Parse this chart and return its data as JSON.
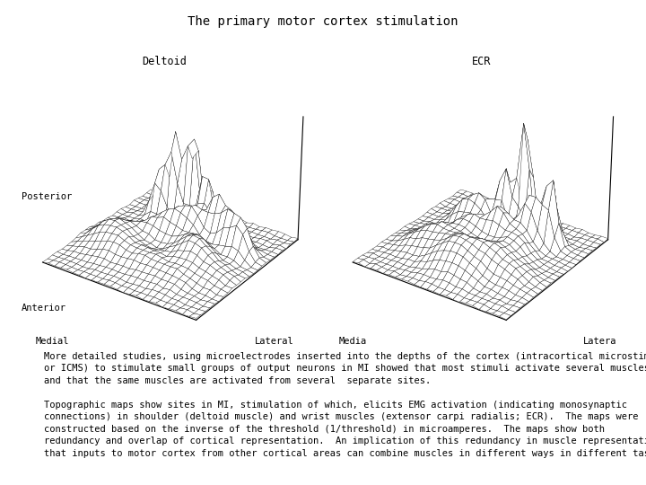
{
  "title": "The primary motor cortex stimulation",
  "title_fontsize": 10,
  "title_font": "monospace",
  "left_label": "Deltoid",
  "right_label": "ECR",
  "left_x_left": "Medial",
  "left_x_right": "Lateral",
  "right_x_left": "Media",
  "right_x_right": "Latera",
  "y_posterior": "Posterior",
  "y_anterior": "Anterior",
  "para1": "More detailed studies, using microelectrodes inserted into the depths of the cortex (intracortical microstimulation\nor ICMS) to stimulate small groups of output neurons in MI showed that most stimuli activate several muscles\nand that the same muscles are activated from several  separate sites.",
  "para2": "Topographic maps show sites in MI, stimulation of which, elicits EMG activation (indicating monosynaptic\nconnections) in shoulder (deltoid muscle) and wrist muscles (extensor carpi radialis; ECR).  The maps were\nconstructed based on the inverse of the threshold (1/threshold) in microamperes.  The maps show both\nredundancy and overlap of cortical representation.  An implication of this redundancy in muscle representation is\nthat inputs to motor cortex from other cortical areas can combine muscles in different ways in different tasks.",
  "bg_color": "#ffffff",
  "text_color": "#000000"
}
